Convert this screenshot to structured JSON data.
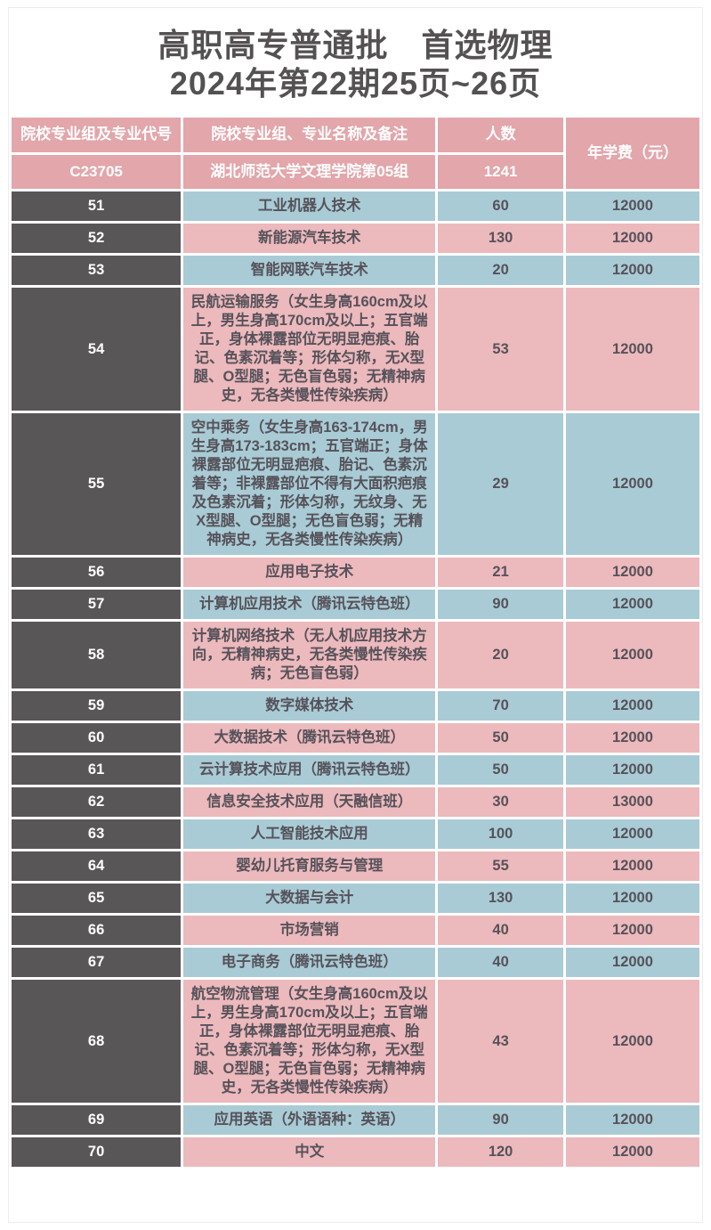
{
  "title": {
    "line1": "高职高专普通批　首选物理",
    "line2": "2024年第22期25页~26页"
  },
  "colors": {
    "header_pink": "#e2a6ab",
    "row_pink": "#ecb9bd",
    "row_blue": "#a9cbd5",
    "code_cell_dark": "#595657",
    "body_text": "#56525a",
    "header_text": "#ffffff",
    "title_text": "#545153"
  },
  "table": {
    "columns": [
      "院校专业组及专业代号",
      "院校专业组、专业名称及备注",
      "人数",
      "年学费（元）"
    ],
    "group": {
      "code": "C23705",
      "name": "湖北师范大学文理学院第05组",
      "count": "1241"
    },
    "rows": [
      {
        "code": "51",
        "name": "工业机器人技术",
        "count": "60",
        "fee": "12000"
      },
      {
        "code": "52",
        "name": "新能源汽车技术",
        "count": "130",
        "fee": "12000"
      },
      {
        "code": "53",
        "name": "智能网联汽车技术",
        "count": "20",
        "fee": "12000"
      },
      {
        "code": "54",
        "name": "民航运输服务（女生身高160cm及以上，男生身高170cm及以上；五官端正，身体裸露部位无明显疤痕、胎记、色素沉着等；形体匀称，无X型腿、O型腿；无色盲色弱；无精神病史，无各类慢性传染疾病）",
        "count": "53",
        "fee": "12000"
      },
      {
        "code": "55",
        "name": "空中乘务（女生身高163-174cm，男生身高173-183cm；五官端正；身体裸露部位无明显疤痕、胎记、色素沉着等；非裸露部位不得有大面积疤痕及色素沉着；形体匀称，无纹身、无X型腿、O型腿；无色盲色弱；无精神病史，无各类慢性传染疾病）",
        "count": "29",
        "fee": "12000"
      },
      {
        "code": "56",
        "name": "应用电子技术",
        "count": "21",
        "fee": "12000"
      },
      {
        "code": "57",
        "name": "计算机应用技术（腾讯云特色班）",
        "count": "90",
        "fee": "12000"
      },
      {
        "code": "58",
        "name": "计算机网络技术（无人机应用技术方向，无精神病史，无各类慢性传染疾病；无色盲色弱）",
        "count": "20",
        "fee": "12000"
      },
      {
        "code": "59",
        "name": "数字媒体技术",
        "count": "70",
        "fee": "12000"
      },
      {
        "code": "60",
        "name": "大数据技术（腾讯云特色班）",
        "count": "50",
        "fee": "12000"
      },
      {
        "code": "61",
        "name": "云计算技术应用（腾讯云特色班）",
        "count": "50",
        "fee": "12000"
      },
      {
        "code": "62",
        "name": "信息安全技术应用（天融信班）",
        "count": "30",
        "fee": "13000"
      },
      {
        "code": "63",
        "name": "人工智能技术应用",
        "count": "100",
        "fee": "12000"
      },
      {
        "code": "64",
        "name": "婴幼儿托育服务与管理",
        "count": "55",
        "fee": "12000"
      },
      {
        "code": "65",
        "name": "大数据与会计",
        "count": "130",
        "fee": "12000"
      },
      {
        "code": "66",
        "name": "市场营销",
        "count": "40",
        "fee": "12000"
      },
      {
        "code": "67",
        "name": "电子商务（腾讯云特色班）",
        "count": "40",
        "fee": "12000"
      },
      {
        "code": "68",
        "name": "航空物流管理（女生身高160cm及以上，男生身高170cm及以上；五官端正，身体裸露部位无明显疤痕、胎记、色素沉着等；形体匀称，无X型腿、O型腿；无色盲色弱；无精神病史，无各类慢性传染疾病）",
        "count": "43",
        "fee": "12000"
      },
      {
        "code": "69",
        "name": "应用英语（外语语种：英语）",
        "count": "90",
        "fee": "12000"
      },
      {
        "code": "70",
        "name": "中文",
        "count": "120",
        "fee": "12000"
      }
    ]
  }
}
